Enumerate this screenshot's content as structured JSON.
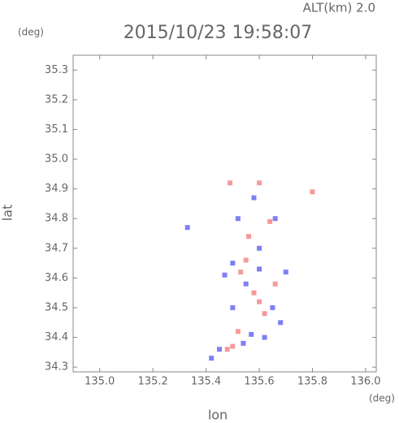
{
  "chart_data": {
    "type": "scatter",
    "title": "2015/10/23 19:58:07",
    "annotation": "ALT(km)  2.0",
    "x_label": "lon",
    "x_unit": "(deg)",
    "y_label": "lat",
    "y_unit": "(deg)",
    "xlim": [
      134.9,
      136.04
    ],
    "ylim": [
      34.284,
      35.35
    ],
    "xticks": [
      {
        "value": 135.0,
        "label": "135.0"
      },
      135.2,
      135.4,
      135.6,
      135.8,
      {
        "value": 136.0,
        "label": "136.0"
      }
    ],
    "yticks": [
      34.3,
      34.4,
      34.5,
      34.6,
      34.7,
      34.8,
      34.9,
      {
        "value": 35.0,
        "label": "35.0"
      },
      35.1,
      35.2,
      35.3
    ],
    "series": [
      {
        "color": "#7f7ff5",
        "x": [
          135.33,
          135.42,
          135.45,
          135.5,
          135.55,
          135.6,
          135.65,
          135.57,
          135.62,
          135.52,
          135.58,
          135.66,
          135.6,
          135.5,
          135.68,
          135.54,
          135.47,
          135.7
        ],
        "y": [
          34.77,
          34.33,
          34.36,
          34.65,
          34.58,
          34.63,
          34.5,
          34.41,
          34.4,
          34.8,
          34.87,
          34.8,
          34.7,
          34.5,
          34.45,
          34.38,
          34.61,
          34.62
        ]
      },
      {
        "color": "#f59a9a",
        "x": [
          135.49,
          135.6,
          135.8,
          135.55,
          135.58,
          135.5,
          135.48,
          135.62,
          135.53,
          135.66,
          135.56,
          135.64,
          135.6,
          135.52
        ],
        "y": [
          34.92,
          34.92,
          34.89,
          34.66,
          34.55,
          34.37,
          34.36,
          34.48,
          34.62,
          34.58,
          34.74,
          34.79,
          34.52,
          34.42
        ]
      }
    ]
  }
}
